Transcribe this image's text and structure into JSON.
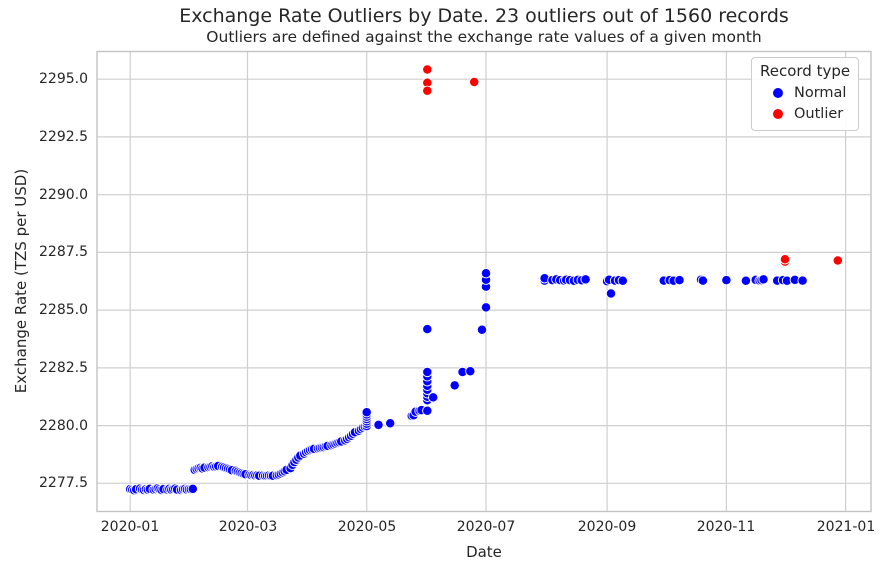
{
  "style": {
    "background": "#ffffff",
    "text_color": "#262626",
    "grid_color": "#cfcfcf",
    "spine_color": "#c3c3c3",
    "normal_color": "#0000ff",
    "outlier_color": "#ff0000",
    "marker_edge_color": "#ffffff"
  },
  "chart_data": {
    "type": "scatter",
    "title": "Exchange Rate Outliers by Date. 23 outliers out of 1560 records",
    "subtitle": "Outliers are defined against the exchange rate values of a given month",
    "xlabel": "Date",
    "ylabel": "Exchange Rate (TZS per USD)",
    "grid": true,
    "legend_position": "upper right",
    "legend": {
      "title": "Record type",
      "items": [
        {
          "label": "Normal",
          "color": "#0000ff"
        },
        {
          "label": "Outlier",
          "color": "#ff0000"
        }
      ]
    },
    "stats": {
      "outliers": 23,
      "total_records": 1560
    },
    "x_range_shown": [
      "2019-12-15",
      "2021-01-14"
    ],
    "ylim": [
      2276.28,
      2296.2
    ],
    "x_ticks": [
      {
        "label": "2020-01",
        "date": "2020-01-01"
      },
      {
        "label": "2020-03",
        "date": "2020-03-01"
      },
      {
        "label": "2020-05",
        "date": "2020-05-01"
      },
      {
        "label": "2020-07",
        "date": "2020-07-01"
      },
      {
        "label": "2020-09",
        "date": "2020-09-01"
      },
      {
        "label": "2020-11",
        "date": "2020-11-01"
      },
      {
        "label": "2021-01",
        "date": "2021-01-01"
      }
    ],
    "y_ticks": [
      {
        "label": "2295.0",
        "value": 2295.0
      },
      {
        "label": "2292.5",
        "value": 2292.5
      },
      {
        "label": "2290.0",
        "value": 2290.0
      },
      {
        "label": "2287.5",
        "value": 2287.5
      },
      {
        "label": "2285.0",
        "value": 2285.0
      },
      {
        "label": "2282.5",
        "value": 2282.5
      },
      {
        "label": "2280.0",
        "value": 2280.0
      },
      {
        "label": "2277.5",
        "value": 2277.5
      }
    ],
    "series": [
      {
        "name": "Normal",
        "color": "#0000ff",
        "points": [
          [
            "2020-01-01",
            2277.25
          ],
          [
            "2020-01-02",
            2277.22
          ],
          [
            "2020-01-03",
            2277.2
          ],
          [
            "2020-01-04",
            2277.24
          ],
          [
            "2020-01-06",
            2277.27
          ],
          [
            "2020-01-07",
            2277.23
          ],
          [
            "2020-01-08",
            2277.21
          ],
          [
            "2020-01-09",
            2277.25
          ],
          [
            "2020-01-10",
            2277.23
          ],
          [
            "2020-01-11",
            2277.26
          ],
          [
            "2020-01-13",
            2277.22
          ],
          [
            "2020-01-14",
            2277.25
          ],
          [
            "2020-01-15",
            2277.28
          ],
          [
            "2020-01-16",
            2277.24
          ],
          [
            "2020-01-17",
            2277.21
          ],
          [
            "2020-01-18",
            2277.25
          ],
          [
            "2020-01-20",
            2277.23
          ],
          [
            "2020-01-21",
            2277.26
          ],
          [
            "2020-01-22",
            2277.22
          ],
          [
            "2020-01-23",
            2277.25
          ],
          [
            "2020-01-24",
            2277.27
          ],
          [
            "2020-01-25",
            2277.23
          ],
          [
            "2020-01-27",
            2277.21
          ],
          [
            "2020-01-28",
            2277.24
          ],
          [
            "2020-01-29",
            2277.26
          ],
          [
            "2020-01-30",
            2277.23
          ],
          [
            "2020-01-31",
            2277.25
          ],
          [
            "2020-02-01",
            2277.24
          ],
          [
            "2020-02-02",
            2277.26
          ],
          [
            "2020-02-03",
            2278.08
          ],
          [
            "2020-02-04",
            2278.12
          ],
          [
            "2020-02-05",
            2278.15
          ],
          [
            "2020-02-06",
            2278.17
          ],
          [
            "2020-02-07",
            2278.14
          ],
          [
            "2020-02-08",
            2278.18
          ],
          [
            "2020-02-10",
            2278.2
          ],
          [
            "2020-02-11",
            2278.22
          ],
          [
            "2020-02-12",
            2278.24
          ],
          [
            "2020-02-13",
            2278.21
          ],
          [
            "2020-02-14",
            2278.23
          ],
          [
            "2020-02-15",
            2278.25
          ],
          [
            "2020-02-17",
            2278.22
          ],
          [
            "2020-02-18",
            2278.19
          ],
          [
            "2020-02-19",
            2278.16
          ],
          [
            "2020-02-20",
            2278.13
          ],
          [
            "2020-02-21",
            2278.1
          ],
          [
            "2020-02-22",
            2278.07
          ],
          [
            "2020-02-24",
            2278.04
          ],
          [
            "2020-02-25",
            2278.0
          ],
          [
            "2020-02-26",
            2277.97
          ],
          [
            "2020-02-27",
            2277.94
          ],
          [
            "2020-02-28",
            2277.91
          ],
          [
            "2020-02-29",
            2277.89
          ],
          [
            "2020-03-02",
            2277.87
          ],
          [
            "2020-03-03",
            2277.85
          ],
          [
            "2020-03-04",
            2277.86
          ],
          [
            "2020-03-05",
            2277.84
          ],
          [
            "2020-03-06",
            2277.85
          ],
          [
            "2020-03-07",
            2277.83
          ],
          [
            "2020-03-09",
            2277.84
          ],
          [
            "2020-03-10",
            2277.82
          ],
          [
            "2020-03-11",
            2277.83
          ],
          [
            "2020-03-12",
            2277.84
          ],
          [
            "2020-03-13",
            2277.82
          ],
          [
            "2020-03-14",
            2277.83
          ],
          [
            "2020-03-16",
            2277.85
          ],
          [
            "2020-03-17",
            2277.88
          ],
          [
            "2020-03-18",
            2277.92
          ],
          [
            "2020-03-19",
            2277.97
          ],
          [
            "2020-03-20",
            2278.02
          ],
          [
            "2020-03-21",
            2278.08
          ],
          [
            "2020-03-23",
            2278.16
          ],
          [
            "2020-03-24",
            2278.3
          ],
          [
            "2020-03-25",
            2278.42
          ],
          [
            "2020-03-26",
            2278.52
          ],
          [
            "2020-03-27",
            2278.62
          ],
          [
            "2020-03-28",
            2278.7
          ],
          [
            "2020-03-30",
            2278.78
          ],
          [
            "2020-03-31",
            2278.85
          ],
          [
            "2020-04-01",
            2278.9
          ],
          [
            "2020-04-02",
            2278.94
          ],
          [
            "2020-04-03",
            2278.97
          ],
          [
            "2020-04-04",
            2278.99
          ],
          [
            "2020-04-06",
            2279.01
          ],
          [
            "2020-04-07",
            2279.03
          ],
          [
            "2020-04-08",
            2279.05
          ],
          [
            "2020-04-09",
            2279.07
          ],
          [
            "2020-04-10",
            2279.1
          ],
          [
            "2020-04-11",
            2279.12
          ],
          [
            "2020-04-13",
            2279.15
          ],
          [
            "2020-04-14",
            2279.18
          ],
          [
            "2020-04-15",
            2279.21
          ],
          [
            "2020-04-16",
            2279.25
          ],
          [
            "2020-04-17",
            2279.28
          ],
          [
            "2020-04-18",
            2279.31
          ],
          [
            "2020-04-20",
            2279.36
          ],
          [
            "2020-04-21",
            2279.42
          ],
          [
            "2020-04-22",
            2279.49
          ],
          [
            "2020-04-23",
            2279.56
          ],
          [
            "2020-04-24",
            2279.64
          ],
          [
            "2020-04-25",
            2279.71
          ],
          [
            "2020-04-27",
            2279.78
          ],
          [
            "2020-04-28",
            2279.85
          ],
          [
            "2020-04-29",
            2279.91
          ],
          [
            "2020-04-30",
            2279.96
          ],
          [
            "2020-05-01",
            2279.98
          ],
          [
            "2020-05-01",
            2280.08
          ],
          [
            "2020-05-01",
            2280.18
          ],
          [
            "2020-05-01",
            2280.28
          ],
          [
            "2020-05-01",
            2280.38
          ],
          [
            "2020-05-01",
            2280.48
          ],
          [
            "2020-05-01",
            2280.58
          ],
          [
            "2020-05-07",
            2280.03
          ],
          [
            "2020-05-13",
            2280.1
          ],
          [
            "2020-05-24",
            2280.42
          ],
          [
            "2020-05-25",
            2280.45
          ],
          [
            "2020-05-26",
            2280.6
          ],
          [
            "2020-05-28",
            2280.64
          ],
          [
            "2020-05-29",
            2280.67
          ],
          [
            "2020-06-01",
            2280.64
          ],
          [
            "2020-06-01",
            2281.1
          ],
          [
            "2020-06-01",
            2281.25
          ],
          [
            "2020-06-01",
            2281.4
          ],
          [
            "2020-06-01",
            2281.55
          ],
          [
            "2020-06-01",
            2281.72
          ],
          [
            "2020-06-01",
            2281.92
          ],
          [
            "2020-06-01",
            2282.13
          ],
          [
            "2020-06-01",
            2282.32
          ],
          [
            "2020-06-01",
            2284.18
          ],
          [
            "2020-06-04",
            2281.22
          ],
          [
            "2020-06-15",
            2281.74
          ],
          [
            "2020-06-19",
            2282.32
          ],
          [
            "2020-06-23",
            2282.35
          ],
          [
            "2020-06-29",
            2284.15
          ],
          [
            "2020-07-01",
            2285.12
          ],
          [
            "2020-07-01",
            2286.02
          ],
          [
            "2020-07-01",
            2286.32
          ],
          [
            "2020-07-01",
            2286.6
          ],
          [
            "2020-07-31",
            2286.28
          ],
          [
            "2020-07-31",
            2286.38
          ],
          [
            "2020-08-04",
            2286.3
          ],
          [
            "2020-08-06",
            2286.33
          ],
          [
            "2020-08-08",
            2286.3
          ],
          [
            "2020-08-10",
            2286.28
          ],
          [
            "2020-08-11",
            2286.32
          ],
          [
            "2020-08-13",
            2286.3
          ],
          [
            "2020-08-15",
            2286.27
          ],
          [
            "2020-08-17",
            2286.31
          ],
          [
            "2020-08-19",
            2286.29
          ],
          [
            "2020-08-21",
            2286.33
          ],
          [
            "2020-09-01",
            2286.3
          ],
          [
            "2020-09-01",
            2286.25
          ],
          [
            "2020-09-02",
            2286.32
          ],
          [
            "2020-09-03",
            2285.72
          ],
          [
            "2020-09-05",
            2286.28
          ],
          [
            "2020-09-07",
            2286.3
          ],
          [
            "2020-09-09",
            2286.27
          ],
          [
            "2020-09-30",
            2286.28
          ],
          [
            "2020-10-03",
            2286.3
          ],
          [
            "2020-10-05",
            2286.27
          ],
          [
            "2020-10-08",
            2286.3
          ],
          [
            "2020-10-19",
            2286.32
          ],
          [
            "2020-10-20",
            2286.28
          ],
          [
            "2020-11-01",
            2286.3
          ],
          [
            "2020-11-11",
            2286.27
          ],
          [
            "2020-11-16",
            2286.31
          ],
          [
            "2020-11-18",
            2286.28
          ],
          [
            "2020-11-19",
            2286.3
          ],
          [
            "2020-11-20",
            2286.33
          ],
          [
            "2020-11-27",
            2286.28
          ],
          [
            "2020-11-30",
            2286.3
          ],
          [
            "2020-12-02",
            2286.27
          ],
          [
            "2020-12-06",
            2286.31
          ],
          [
            "2020-12-10",
            2286.28
          ]
        ]
      },
      {
        "name": "Outlier",
        "color": "#ff0000",
        "points": [
          [
            "2020-06-01",
            2295.42
          ],
          [
            "2020-06-01",
            2294.85
          ],
          [
            "2020-06-01",
            2294.5
          ],
          [
            "2020-06-25",
            2294.88
          ],
          [
            "2020-12-01",
            2287.1
          ],
          [
            "2020-12-01",
            2287.2
          ],
          [
            "2020-12-28",
            2287.15
          ]
        ]
      }
    ]
  }
}
